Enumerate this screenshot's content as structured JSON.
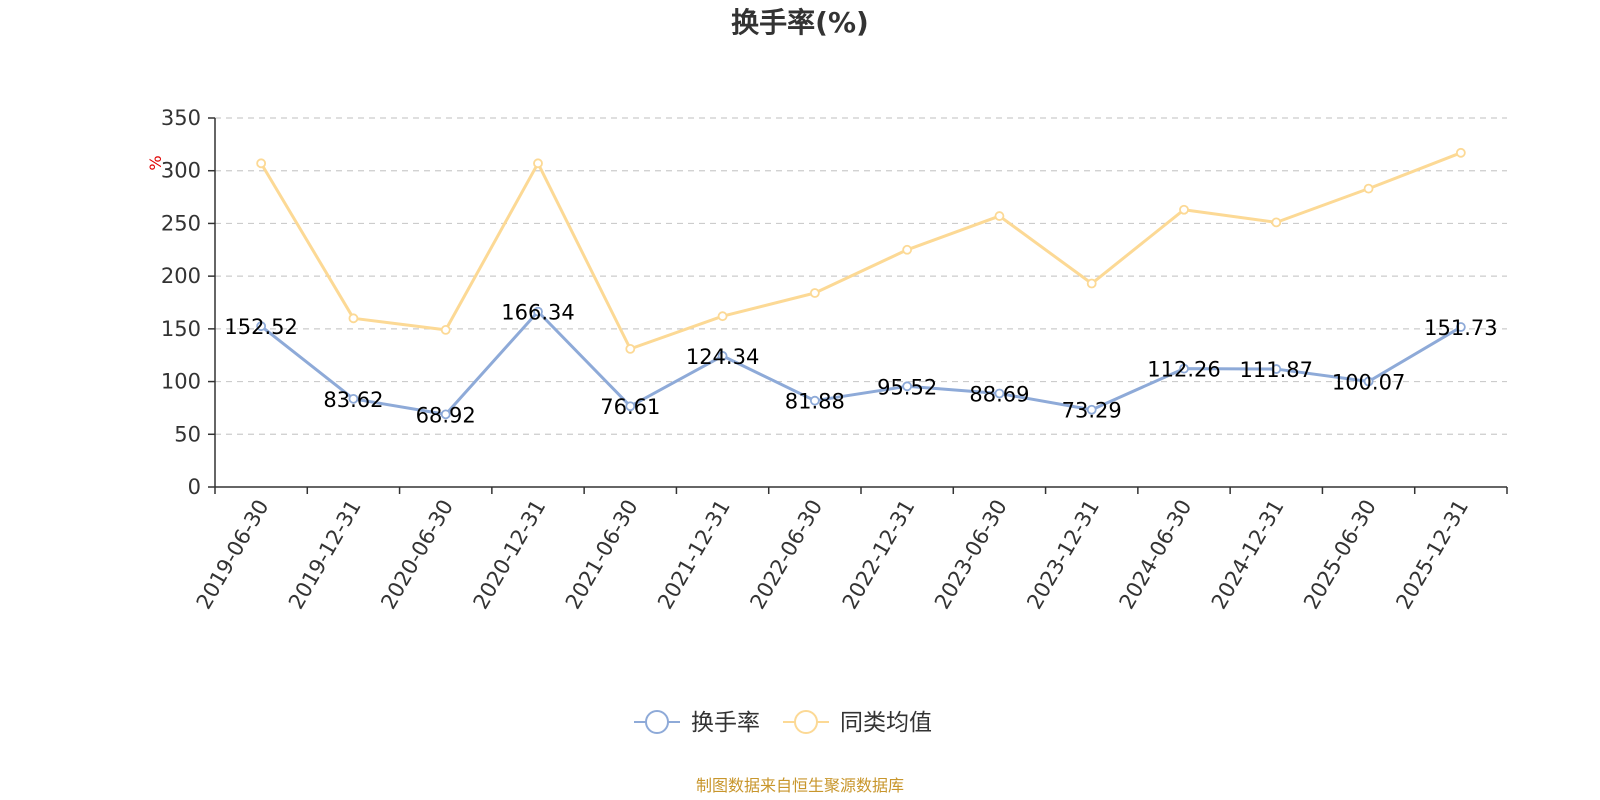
{
  "chart_data": {
    "type": "line",
    "title": "换手率(%)",
    "unit": "%",
    "categories": [
      "2019-06-30",
      "2019-12-31",
      "2020-06-30",
      "2020-12-31",
      "2021-06-30",
      "2021-12-31",
      "2022-06-30",
      "2022-12-31",
      "2023-06-30",
      "2023-12-31",
      "2024-06-30",
      "2024-12-31",
      "2025-06-30",
      "2025-12-31"
    ],
    "series": [
      {
        "name": "换手率",
        "color": "#8eaad8",
        "values": [
          152.52,
          83.62,
          68.92,
          166.34,
          76.61,
          124.34,
          81.88,
          95.52,
          88.69,
          73.29,
          112.26,
          111.87,
          100.07,
          151.73
        ],
        "labels": [
          "152.52",
          "83.62",
          "68.92",
          "166.34",
          "76.61",
          "124.34",
          "81.88",
          "95.52",
          "88.69",
          "73.29",
          "112.26",
          "111.87",
          "100.07",
          "151.73"
        ]
      },
      {
        "name": "同类均值",
        "color": "#fcd995",
        "values": [
          307,
          160,
          149,
          307,
          131,
          162,
          184,
          225,
          257,
          193,
          263,
          251,
          283,
          317
        ]
      }
    ],
    "yticks": [
      "0",
      "50",
      "100",
      "150",
      "200",
      "250",
      "300",
      "350"
    ],
    "ylim": [
      0,
      350
    ],
    "grid": true,
    "legend_position": "bottom-center"
  },
  "source_text": "制图数据来自恒生聚源数据库"
}
